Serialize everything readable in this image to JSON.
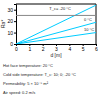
{
  "chart_data": {
    "type": "line",
    "xlabel": "d [m]",
    "ylabel": "Ra*",
    "xlim": [
      0,
      6
    ],
    "ylim": [
      0,
      35
    ],
    "xticks": [
      0,
      1,
      2,
      3,
      4,
      5,
      6
    ],
    "yticks": [
      0,
      10,
      20,
      30
    ],
    "x": [
      0,
      6
    ],
    "series": [
      {
        "color": "#00ccff",
        "values": [
          0,
          34
        ]
      },
      {
        "color": "#00ccff",
        "values": [
          0,
          19
        ]
      },
      {
        "color": "#00ccff",
        "values": [
          0,
          10
        ]
      },
      {
        "color": "#888888",
        "values": [
          25,
          25
        ]
      }
    ],
    "annotations": [
      {
        "text": "T_c= -20 °C",
        "x": 2.5,
        "y": 29.5
      },
      {
        "text": "0 °C",
        "x": 5.1,
        "y": 20.5
      },
      {
        "text": "10 °C",
        "x": 5.1,
        "y": 11.0
      }
    ],
    "footnotes": [
      "Hot face temperature: 20 °C",
      "Cold side temperature: T_c: 10; 0; -20 °C",
      "Permeability: 5 × 10⁻⁵ m²",
      "Air speed: 0.2 m/s"
    ]
  }
}
